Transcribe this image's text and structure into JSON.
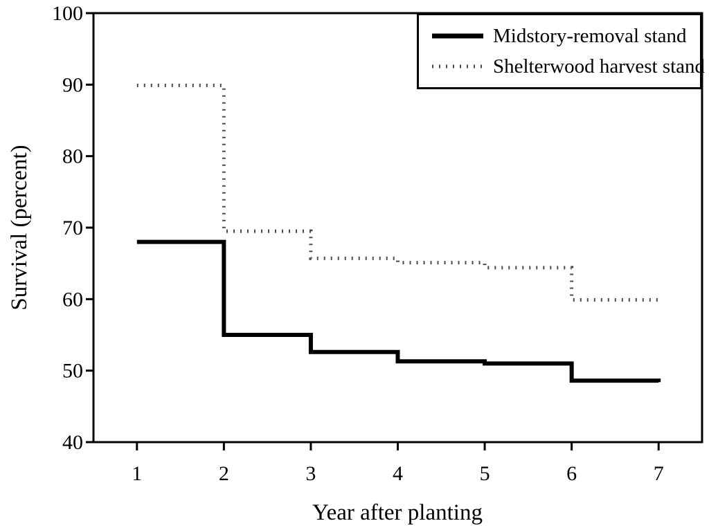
{
  "chart_data": {
    "type": "line",
    "subtype": "step-survival-curve",
    "title": "",
    "xlabel": "Year after planting",
    "ylabel": "Survival (percent)",
    "xlim": [
      0.5,
      7.5
    ],
    "ylim": [
      40,
      100
    ],
    "x_ticks": [
      1,
      2,
      3,
      4,
      5,
      6,
      7
    ],
    "y_ticks": [
      40,
      50,
      60,
      70,
      80,
      90,
      100
    ],
    "grid": false,
    "frame": true,
    "legend_position": "top-right-boxed",
    "axis_color": "#000000",
    "background_color": "#ffffff",
    "series": [
      {
        "name": "Midstory-removal stand",
        "style": "solid",
        "color": "#000000",
        "line_width": 6,
        "years": [
          1,
          2,
          3,
          4,
          5,
          6,
          7
        ],
        "values": [
          68.0,
          55.0,
          52.6,
          51.3,
          51.0,
          48.6,
          48.4
        ],
        "note": "value holds from listed year to next year; final value is the small end-step at year 7"
      },
      {
        "name": "Shelterwood harvest stand",
        "style": "dotted",
        "color": "#4a4a4a",
        "line_width": 5,
        "years": [
          1,
          2,
          3,
          4,
          5,
          6,
          7
        ],
        "values": [
          89.9,
          69.5,
          65.7,
          65.1,
          64.4,
          59.9,
          59.7
        ],
        "note": "value holds from listed year to next year; final value is the small end-step at year 7"
      }
    ]
  },
  "legend": {
    "items": [
      {
        "label": "Midstory-removal stand"
      },
      {
        "label": "Shelterwood harvest stand"
      }
    ]
  }
}
